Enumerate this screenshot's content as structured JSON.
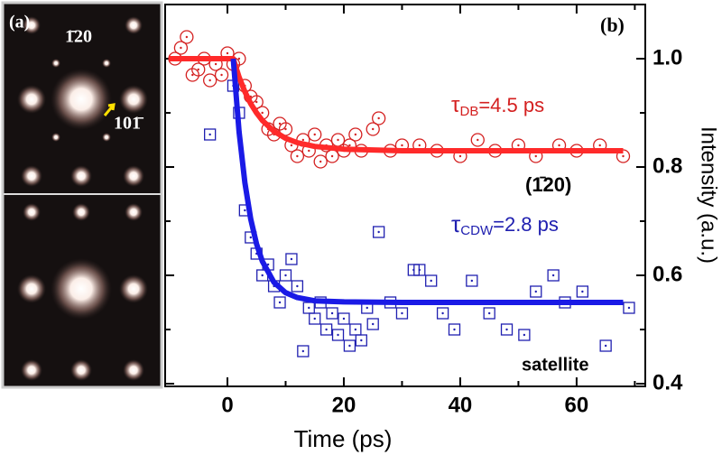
{
  "panel_a": {
    "label": "(a)",
    "spot_top": "1̄20",
    "spot_right": "101̄"
  },
  "chart_data": {
    "type": "scatter",
    "panel_label": "(b)",
    "x_label": "Time (ps)",
    "y_label": "Intensity (a.u.)",
    "xlim": [
      -10.7,
      71.8
    ],
    "ylim": [
      0.395,
      1.1
    ],
    "xticks": [
      0,
      20,
      40,
      60
    ],
    "xminorticks": [
      10,
      30,
      50,
      70
    ],
    "yticks": [
      {
        "value": 0.4,
        "label": "0.4"
      },
      {
        "value": 0.6,
        "label": "0.6"
      },
      {
        "value": 0.8,
        "label": "0.8"
      },
      {
        "value": 1,
        "label": "1.0"
      }
    ],
    "yminorticks": [
      0.5,
      0.7,
      0.9
    ],
    "series": [
      {
        "marker": "circle",
        "color": "#d42020",
        "x": [
          -9,
          -8,
          -7,
          -6,
          -5,
          -4,
          -3,
          -2,
          -1,
          0,
          1,
          2,
          3,
          4,
          5,
          6,
          7,
          8,
          9,
          10,
          11,
          12,
          13,
          14,
          15,
          16,
          17,
          18,
          19,
          20,
          21,
          22,
          23,
          25,
          26,
          28,
          30,
          33,
          36,
          40,
          43,
          46,
          50,
          53,
          57,
          60,
          64,
          68
        ],
        "values": [
          1.0,
          1.02,
          1.04,
          0.97,
          0.98,
          1.0,
          0.96,
          0.99,
          0.97,
          1.01,
          0.99,
          1.0,
          0.95,
          0.93,
          0.92,
          0.9,
          0.87,
          0.86,
          0.88,
          0.87,
          0.84,
          0.82,
          0.85,
          0.83,
          0.86,
          0.81,
          0.84,
          0.82,
          0.85,
          0.83,
          0.84,
          0.86,
          0.83,
          0.87,
          0.89,
          0.83,
          0.84,
          0.84,
          0.83,
          0.82,
          0.85,
          0.83,
          0.84,
          0.82,
          0.84,
          0.83,
          0.84,
          0.82
        ]
      },
      {
        "marker": "square",
        "color": "#2020b0",
        "x": [
          -3,
          1,
          2,
          3,
          4,
          5,
          6,
          7,
          8,
          9,
          10,
          11,
          12,
          13,
          14,
          15,
          16,
          17,
          18,
          19,
          20,
          21,
          22,
          23,
          24,
          25,
          26,
          28,
          30,
          32,
          33,
          35,
          37,
          39,
          42,
          45,
          48,
          51,
          53,
          56,
          58,
          61,
          65,
          69
        ],
        "values": [
          0.86,
          0.95,
          0.9,
          0.72,
          0.67,
          0.64,
          0.6,
          0.62,
          0.58,
          0.55,
          0.6,
          0.63,
          0.58,
          0.46,
          0.54,
          0.52,
          0.55,
          0.5,
          0.53,
          0.49,
          0.52,
          0.47,
          0.5,
          0.48,
          0.54,
          0.51,
          0.68,
          0.55,
          0.53,
          0.61,
          0.61,
          0.59,
          0.53,
          0.5,
          0.59,
          0.53,
          0.5,
          0.49,
          0.57,
          0.6,
          0.55,
          0.57,
          0.47,
          0.54
        ]
      }
    ],
    "fits": [
      {
        "color": "#ff2a2a",
        "x": [
          -10,
          0,
          1,
          2,
          3,
          4,
          5,
          6,
          8,
          10,
          12,
          15,
          20,
          30,
          68
        ],
        "values": [
          1,
          1,
          1,
          0.966,
          0.939,
          0.917,
          0.9,
          0.886,
          0.866,
          0.853,
          0.845,
          0.838,
          0.833,
          0.83,
          0.83
        ]
      },
      {
        "color": "#1a1ae6",
        "x": [
          1,
          2,
          3,
          4,
          5,
          6,
          8,
          10,
          12,
          15,
          20,
          30,
          68
        ],
        "values": [
          1,
          0.865,
          0.771,
          0.704,
          0.658,
          0.626,
          0.587,
          0.568,
          0.559,
          0.553,
          0.551,
          0.55,
          0.55
        ]
      }
    ],
    "annotations": {
      "tau_db": [
        "τ",
        "DB",
        "=4.5 ps"
      ],
      "reflection": "(1̄20)",
      "tau_cdw": [
        "τ",
        "CDW",
        "=2.8 ps"
      ],
      "satellite": "satellite"
    }
  }
}
